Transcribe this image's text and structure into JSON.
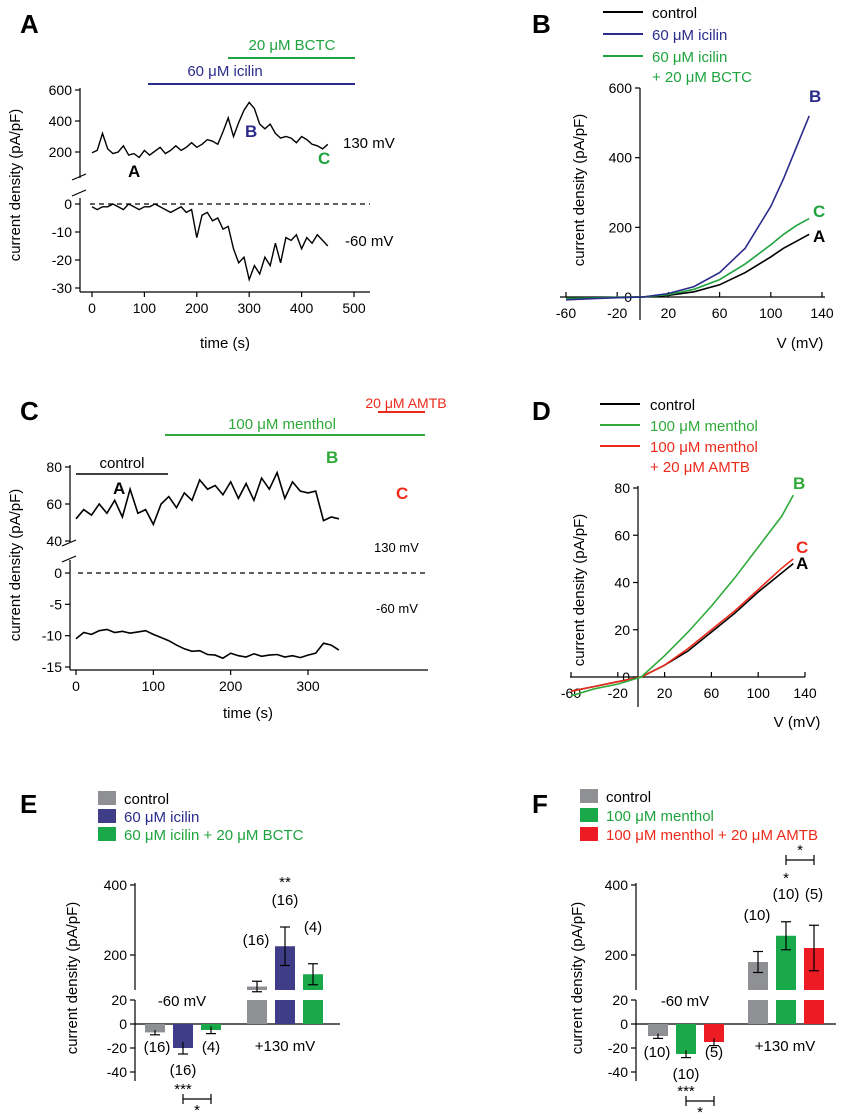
{
  "colors": {
    "black": "#000000",
    "icilin": "#2b2b8c",
    "bctc": "#1fa33f",
    "menthol": "#2faa3a",
    "amtb": "#ec2a1c",
    "control_gray": "#8c8c8c",
    "gray_bar": "#8f9093",
    "icilin_bar": "#3f3d88",
    "green_bar": "#19a94b",
    "red_bar": "#ed1c24"
  },
  "panels": {
    "A": "A",
    "B": "B",
    "C": "C",
    "D": "D",
    "E": "E",
    "F": "F"
  },
  "panelA": {
    "ylabel": "current density (pA/pF)",
    "xlabel": "time (s)",
    "xticks": [
      "0",
      "100",
      "200",
      "300",
      "400",
      "500"
    ],
    "yticks_top": [
      "600",
      "400",
      "200"
    ],
    "yticks_bottom": [
      "0",
      "-10",
      "-20",
      "-30"
    ],
    "bar_bctc": "20 μM BCTC",
    "bar_icilin": "60 μM icilin",
    "v_top": "130 mV",
    "v_bottom": "-60 mV",
    "marks": {
      "A": "A",
      "B": "B",
      "C": "C"
    }
  },
  "panelB": {
    "legend": [
      "control",
      "60 μM icilin",
      "60 μM icilin",
      "+ 20 μM BCTC"
    ],
    "ylabel": "current density (pA/pF)",
    "xlabel": "V (mV)",
    "xticks": [
      "-60",
      "-20",
      "20",
      "60",
      "100",
      "140"
    ],
    "yticks": [
      "600",
      "400",
      "200",
      "0"
    ],
    "marks": {
      "A": "A",
      "B": "B",
      "C": "C"
    }
  },
  "panelC": {
    "ylabel": "current density (pA/pF)",
    "xlabel": "time (s)",
    "xticks": [
      "0",
      "100",
      "200",
      "300"
    ],
    "yticks_top": [
      "80",
      "60",
      "40"
    ],
    "yticks_bottom": [
      "0",
      "-5",
      "-10",
      "-15"
    ],
    "bar_amtb": "20 μM AMTB",
    "bar_menthol": "100 μM menthol",
    "bar_control": "control",
    "v_top": "130 mV",
    "v_bottom": "-60 mV",
    "marks": {
      "A": "A",
      "B": "B",
      "C": "C"
    }
  },
  "panelD": {
    "legend": [
      "control",
      "100 μM menthol",
      "100 μM menthol",
      "+ 20 μM AMTB"
    ],
    "ylabel": "current density (pA/pF)",
    "xlabel": "V (mV)",
    "xticks": [
      "-60",
      "-20",
      "20",
      "60",
      "100",
      "140"
    ],
    "yticks": [
      "80",
      "60",
      "40",
      "20",
      "0"
    ],
    "marks": {
      "A": "A",
      "B": "B",
      "C": "C"
    }
  },
  "panelE": {
    "legend": [
      "control",
      "60 μM icilin",
      "60 μM icilin + 20 μM BCTC"
    ],
    "ylabel": "current density (pA/pF)",
    "yticks_top": [
      "400",
      "200"
    ],
    "yticks_bottom": [
      "20",
      "0",
      "-20",
      "-40"
    ],
    "group_neg": "-60 mV",
    "group_pos": "+130 mV",
    "n_neg": [
      "(16)",
      "(16)",
      "(4)"
    ],
    "n_pos": [
      "(16)",
      "(16)",
      "(4)"
    ],
    "sig_pos": "**",
    "sig_neg1": "***",
    "sig_neg2": "*"
  },
  "panelF": {
    "legend": [
      "control",
      "100 μM menthol",
      "100 μM menthol + 20 μM AMTB"
    ],
    "ylabel": "current density (pA/pF)",
    "yticks_top": [
      "400",
      "200"
    ],
    "yticks_bottom": [
      "20",
      "0",
      "-20",
      "-40"
    ],
    "group_neg": "-60 mV",
    "group_pos": "+130 mV",
    "n_neg": [
      "(10)",
      "(10)",
      "(5)"
    ],
    "n_pos": [
      "(10)",
      "(10)",
      "(5)"
    ],
    "sig_pos1": "*",
    "sig_pos2": "*",
    "sig_neg1": "***",
    "sig_neg2": "*"
  },
  "chart_data": [
    {
      "panel": "A",
      "type": "line",
      "xlabel": "time (s)",
      "ylabel": "current density (pA/pF)",
      "xlim": [
        0,
        500
      ],
      "series": [
        {
          "name": "130 mV",
          "x": [
            0,
            10,
            20,
            30,
            40,
            50,
            60,
            70,
            80,
            90,
            100,
            110,
            120,
            130,
            140,
            150,
            160,
            170,
            180,
            190,
            200,
            210,
            220,
            230,
            240,
            250,
            260,
            270,
            280,
            290,
            300,
            310,
            320,
            330,
            340,
            350,
            360,
            370,
            380,
            390,
            400,
            410,
            420,
            430,
            440,
            450
          ],
          "values": [
            195,
            210,
            320,
            220,
            190,
            200,
            240,
            180,
            190,
            165,
            210,
            180,
            205,
            230,
            190,
            210,
            240,
            210,
            230,
            260,
            230,
            250,
            280,
            270,
            250,
            330,
            420,
            300,
            390,
            470,
            520,
            480,
            380,
            350,
            380,
            320,
            290,
            300,
            290,
            260,
            300,
            280,
            250,
            240,
            220,
            250
          ]
        },
        {
          "name": "-60 mV",
          "x": [
            0,
            10,
            20,
            30,
            40,
            50,
            60,
            70,
            80,
            90,
            100,
            110,
            120,
            130,
            140,
            150,
            160,
            170,
            180,
            190,
            200,
            210,
            220,
            230,
            240,
            250,
            260,
            270,
            280,
            290,
            300,
            310,
            320,
            330,
            340,
            350,
            360,
            370,
            380,
            390,
            400,
            410,
            420,
            430,
            440,
            450
          ],
          "values": [
            -1,
            -2,
            -1,
            -1,
            0,
            -1,
            -2,
            0,
            -1,
            -2,
            -1,
            -1,
            0,
            -1,
            -2,
            -3,
            -2,
            -1,
            -3,
            -2,
            -12,
            -4,
            -3,
            -6,
            -5,
            -9,
            -8,
            -16,
            -21,
            -19,
            -27,
            -22,
            -25,
            -19,
            -22,
            -14,
            -21,
            -12,
            -13,
            -11,
            -16,
            -12,
            -14,
            -11,
            -13,
            -15
          ]
        }
      ],
      "annotations": {
        "A": [
          80,
          190
        ],
        "B": [
          300,
          520
        ],
        "C": [
          440,
          220
        ]
      }
    },
    {
      "panel": "B",
      "type": "line",
      "xlabel": "V (mV)",
      "ylabel": "current density (pA/pF)",
      "xlim": [
        -60,
        140
      ],
      "ylim": [
        -20,
        600
      ],
      "series": [
        {
          "name": "control",
          "x": [
            -60,
            -40,
            -20,
            0,
            20,
            40,
            60,
            80,
            100,
            110,
            120,
            130
          ],
          "values": [
            -3,
            -2,
            -1,
            0,
            5,
            15,
            35,
            70,
            115,
            140,
            160,
            180
          ]
        },
        {
          "name": "60 μM icilin",
          "x": [
            -60,
            -40,
            -20,
            0,
            20,
            40,
            60,
            80,
            100,
            110,
            120,
            130
          ],
          "values": [
            -8,
            -5,
            -2,
            0,
            10,
            30,
            70,
            140,
            260,
            340,
            430,
            520
          ]
        },
        {
          "name": "60 μM icilin + 20 μM BCTC",
          "x": [
            -60,
            -40,
            -20,
            0,
            20,
            40,
            60,
            80,
            100,
            110,
            120,
            130
          ],
          "values": [
            -4,
            -3,
            -1,
            0,
            7,
            22,
            50,
            95,
            150,
            180,
            205,
            225
          ]
        }
      ]
    },
    {
      "panel": "C",
      "type": "line",
      "xlabel": "time (s)",
      "ylabel": "current density (pA/pF)",
      "xlim": [
        0,
        350
      ],
      "series": [
        {
          "name": "130 mV",
          "x": [
            0,
            10,
            20,
            30,
            40,
            50,
            60,
            70,
            80,
            90,
            100,
            110,
            120,
            130,
            140,
            150,
            160,
            170,
            180,
            190,
            200,
            210,
            220,
            230,
            240,
            250,
            260,
            270,
            280,
            290,
            300,
            310,
            320,
            330,
            340
          ],
          "values": [
            52,
            57,
            54,
            60,
            55,
            62,
            53,
            68,
            55,
            57,
            49,
            60,
            64,
            58,
            66,
            62,
            73,
            68,
            70,
            65,
            72,
            63,
            71,
            62,
            74,
            68,
            77,
            63,
            72,
            67,
            66,
            67,
            51,
            53,
            52
          ]
        },
        {
          "name": "-60 mV",
          "x": [
            0,
            10,
            20,
            30,
            40,
            50,
            60,
            70,
            80,
            90,
            100,
            110,
            120,
            130,
            140,
            150,
            160,
            170,
            180,
            190,
            200,
            210,
            220,
            230,
            240,
            250,
            260,
            270,
            280,
            290,
            300,
            310,
            320,
            330,
            340
          ],
          "values": [
            -10.5,
            -9.5,
            -9.8,
            -9.2,
            -9.0,
            -9.5,
            -9.3,
            -9.6,
            -9.4,
            -9.2,
            -9.8,
            -10.3,
            -10.8,
            -11.5,
            -12.1,
            -12.5,
            -12.4,
            -13.0,
            -13.1,
            -13.6,
            -12.8,
            -13.2,
            -13.4,
            -12.9,
            -13.3,
            -13.1,
            -13.0,
            -13.4,
            -13.2,
            -13.5,
            -13.1,
            -12.8,
            -11.2,
            -11.5,
            -12.3
          ]
        }
      ],
      "annotations": {
        "A": [
          45,
          62
        ],
        "B": [
          258,
          77
        ],
        "C": [
          325,
          52
        ]
      }
    },
    {
      "panel": "D",
      "type": "line",
      "xlabel": "V (mV)",
      "ylabel": "current density (pA/pF)",
      "xlim": [
        -60,
        140
      ],
      "ylim": [
        -10,
        80
      ],
      "series": [
        {
          "name": "control",
          "x": [
            -60,
            -40,
            -20,
            0,
            20,
            40,
            60,
            80,
            100,
            120,
            130
          ],
          "values": [
            -6,
            -4,
            -2,
            0,
            5,
            11,
            19,
            27,
            36,
            44,
            48
          ]
        },
        {
          "name": "100 μM menthol",
          "x": [
            -60,
            -40,
            -20,
            0,
            20,
            40,
            60,
            80,
            100,
            120,
            130
          ],
          "values": [
            -8,
            -5,
            -3,
            0,
            9,
            19,
            30,
            42,
            55,
            68,
            77
          ]
        },
        {
          "name": "100 μM menthol + 20 μM AMTB",
          "x": [
            -60,
            -40,
            -20,
            0,
            20,
            40,
            60,
            80,
            100,
            120,
            130
          ],
          "values": [
            -6,
            -4,
            -2,
            0,
            5,
            12,
            20,
            28,
            37,
            46,
            50
          ]
        }
      ]
    },
    {
      "panel": "E",
      "type": "bar",
      "ylabel": "current density (pA/pF)",
      "categories": [
        "-60 mV",
        "+130 mV"
      ],
      "series": [
        {
          "name": "control",
          "values": [
            -7,
            110
          ],
          "errors": [
            2,
            15
          ],
          "n": [
            16,
            16
          ]
        },
        {
          "name": "60 μM icilin",
          "values": [
            -20,
            225
          ],
          "errors": [
            5,
            55
          ],
          "n": [
            16,
            16
          ]
        },
        {
          "name": "60 μM icilin + 20 μM BCTC",
          "values": [
            -5,
            145
          ],
          "errors": [
            3,
            30
          ],
          "n": [
            4,
            4
          ]
        }
      ],
      "significance": {
        "+130 mV icilin vs control": "**",
        "-60 mV icilin vs control": "***",
        "-60 mV BCTC vs icilin": "*"
      }
    },
    {
      "panel": "F",
      "type": "bar",
      "ylabel": "current density (pA/pF)",
      "categories": [
        "-60 mV",
        "+130 mV"
      ],
      "series": [
        {
          "name": "control",
          "values": [
            -10,
            180
          ],
          "errors": [
            2,
            30
          ],
          "n": [
            10,
            10
          ]
        },
        {
          "name": "100 μM menthol",
          "values": [
            -25,
            255
          ],
          "errors": [
            3,
            40
          ],
          "n": [
            10,
            10
          ]
        },
        {
          "name": "100 μM menthol + 20 μM AMTB",
          "values": [
            -15,
            220
          ],
          "errors": [
            3,
            65
          ],
          "n": [
            5,
            5
          ]
        }
      ],
      "significance": {
        "+130 mV menthol vs control": "*",
        "+130 mV AMTB vs menthol": "*",
        "-60 mV menthol vs control": "***",
        "-60 mV AMTB vs menthol": "*"
      }
    }
  ]
}
